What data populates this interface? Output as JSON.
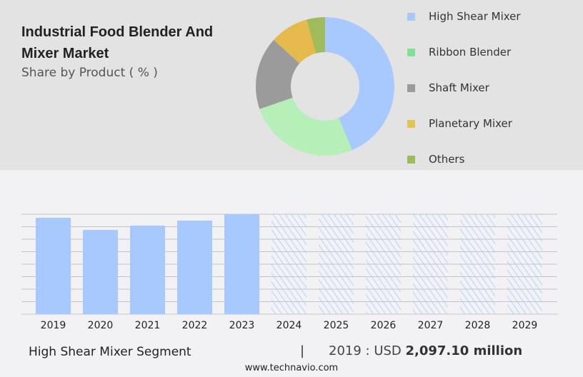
{
  "chart_data": [
    {
      "type": "pie",
      "title": "Industrial Food Blender And Mixer Market",
      "subtitle": "Share by Product ( % )",
      "legend_position": "right",
      "labels": [
        "High Shear Mixer",
        "Ribbon Blender",
        "Shaft Mixer",
        "Planetary Mixer",
        "Others"
      ],
      "values": [
        43.6,
        26.1,
        17.0,
        9.0,
        4.3
      ],
      "colors": [
        "#a8c9fe",
        "#b7efb9",
        "#9b9b9b",
        "#e6b94d",
        "#9fbb5b"
      ],
      "legend_colors": [
        "#a8c9fe",
        "#7ee396",
        "#9b9b9b",
        "#e1c451",
        "#9fbb5b"
      ]
    },
    {
      "type": "bar",
      "categories": [
        "2019",
        "2020",
        "2021",
        "2022",
        "2023",
        "2024",
        "2025",
        "2026",
        "2027",
        "2028",
        "2029"
      ],
      "values": [
        2097.1,
        1833,
        1926,
        2035,
        2175,
        null,
        null,
        null,
        null,
        null,
        null
      ],
      "forecast_from": "2024",
      "bar_color": "#a8c9fe",
      "grid": true,
      "ylim": [
        0,
        2175
      ]
    }
  ],
  "footer": {
    "segment": "High Shear Mixer Segment",
    "separator": "|",
    "value_prefix": "2019 : USD ",
    "value": "2,097.10 million",
    "site": "www.technavio.com"
  }
}
